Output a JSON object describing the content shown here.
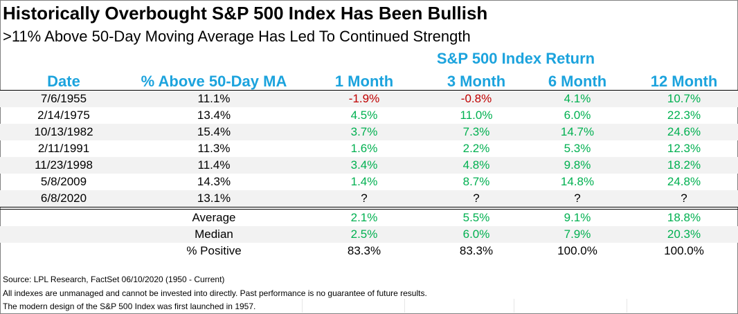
{
  "chart_data": {
    "type": "table",
    "title": "Historically Overbought S&P 500 Index Has Been Bullish",
    "subtitle": ">11% Above 50-Day Moving Average Has Led To Continued Strength",
    "group_header": "S&P 500 Index Return",
    "columns": [
      "Date",
      "% Above 50-Day MA",
      "1 Month",
      "3 Month",
      "6 Month",
      "12 Month"
    ],
    "rows": [
      {
        "date": "7/6/1955",
        "above": "11.1%",
        "m1": "-1.9%",
        "m3": "-0.8%",
        "m6": "4.1%",
        "m12": "10.7%"
      },
      {
        "date": "2/14/1975",
        "above": "13.4%",
        "m1": "4.5%",
        "m3": "11.0%",
        "m6": "6.0%",
        "m12": "22.3%"
      },
      {
        "date": "10/13/1982",
        "above": "15.4%",
        "m1": "3.7%",
        "m3": "7.3%",
        "m6": "14.7%",
        "m12": "24.6%"
      },
      {
        "date": "2/11/1991",
        "above": "11.3%",
        "m1": "1.6%",
        "m3": "2.2%",
        "m6": "5.3%",
        "m12": "12.3%"
      },
      {
        "date": "11/23/1998",
        "above": "11.4%",
        "m1": "3.4%",
        "m3": "4.8%",
        "m6": "9.8%",
        "m12": "18.2%"
      },
      {
        "date": "5/8/2009",
        "above": "14.3%",
        "m1": "1.4%",
        "m3": "8.7%",
        "m6": "14.8%",
        "m12": "24.8%"
      },
      {
        "date": "6/8/2020",
        "above": "13.1%",
        "m1": "?",
        "m3": "?",
        "m6": "?",
        "m12": "?"
      }
    ],
    "summary": [
      {
        "label": "Average",
        "m1": "2.1%",
        "m3": "5.5%",
        "m6": "9.1%",
        "m12": "18.8%"
      },
      {
        "label": "Median",
        "m1": "2.5%",
        "m3": "6.0%",
        "m6": "7.9%",
        "m12": "20.3%"
      },
      {
        "label": "% Positive",
        "m1": "83.3%",
        "m3": "83.3%",
        "m6": "100.0%",
        "m12": "100.0%"
      }
    ],
    "notes": [
      "Source: LPL Research, FactSet 06/10/2020 (1950 - Current)",
      "All indexes are unmanaged and cannot be invested into directly. Past performance is no guarantee of future results.",
      "The modern design of the S&P 500 Index was first launched in 1957."
    ],
    "colors": {
      "header": "#1ca3dd",
      "positive": "#00b050",
      "negative": "#c00000",
      "row_shade": "#f2f2f2"
    }
  }
}
